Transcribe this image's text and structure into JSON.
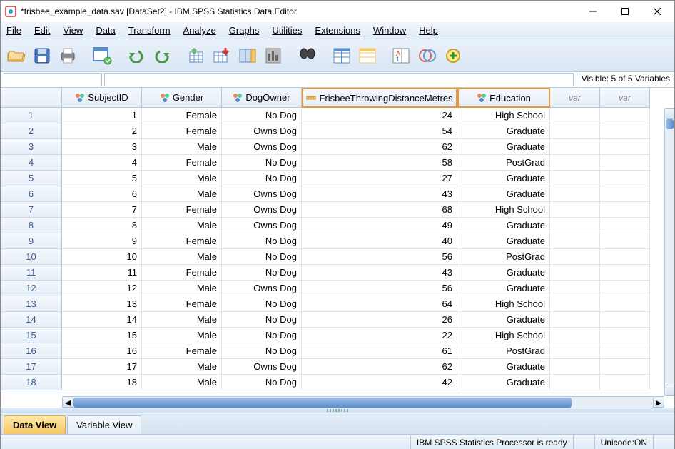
{
  "window": {
    "title": "*frisbee_example_data.sav [DataSet2] - IBM SPSS Statistics Data Editor"
  },
  "menu": [
    "File",
    "Edit",
    "View",
    "Data",
    "Transform",
    "Analyze",
    "Graphs",
    "Utilities",
    "Extensions",
    "Window",
    "Help"
  ],
  "visible_text": "Visible: 5 of 5 Variables",
  "columns": [
    {
      "name": "SubjectID",
      "type": "nominal",
      "selected": false
    },
    {
      "name": "Gender",
      "type": "nominal",
      "selected": false
    },
    {
      "name": "DogOwner",
      "type": "nominal",
      "selected": false
    },
    {
      "name": "FrisbeeThrowingDistanceMetres",
      "type": "scale",
      "selected": true
    },
    {
      "name": "Education",
      "type": "nominal",
      "selected": true
    }
  ],
  "empty_cols": [
    "var",
    "var"
  ],
  "rows": [
    {
      "n": 1,
      "SubjectID": "1",
      "Gender": "Female",
      "DogOwner": "No Dog",
      "Frisbee": "24",
      "Education": "High School"
    },
    {
      "n": 2,
      "SubjectID": "2",
      "Gender": "Female",
      "DogOwner": "Owns Dog",
      "Frisbee": "54",
      "Education": "Graduate"
    },
    {
      "n": 3,
      "SubjectID": "3",
      "Gender": "Male",
      "DogOwner": "Owns Dog",
      "Frisbee": "62",
      "Education": "Graduate"
    },
    {
      "n": 4,
      "SubjectID": "4",
      "Gender": "Female",
      "DogOwner": "No Dog",
      "Frisbee": "58",
      "Education": "PostGrad"
    },
    {
      "n": 5,
      "SubjectID": "5",
      "Gender": "Male",
      "DogOwner": "No Dog",
      "Frisbee": "27",
      "Education": "Graduate"
    },
    {
      "n": 6,
      "SubjectID": "6",
      "Gender": "Male",
      "DogOwner": "Owns Dog",
      "Frisbee": "43",
      "Education": "Graduate"
    },
    {
      "n": 7,
      "SubjectID": "7",
      "Gender": "Female",
      "DogOwner": "Owns Dog",
      "Frisbee": "68",
      "Education": "High School"
    },
    {
      "n": 8,
      "SubjectID": "8",
      "Gender": "Male",
      "DogOwner": "Owns Dog",
      "Frisbee": "49",
      "Education": "Graduate"
    },
    {
      "n": 9,
      "SubjectID": "9",
      "Gender": "Female",
      "DogOwner": "No Dog",
      "Frisbee": "40",
      "Education": "Graduate"
    },
    {
      "n": 10,
      "SubjectID": "10",
      "Gender": "Male",
      "DogOwner": "No Dog",
      "Frisbee": "56",
      "Education": "PostGrad"
    },
    {
      "n": 11,
      "SubjectID": "11",
      "Gender": "Female",
      "DogOwner": "No Dog",
      "Frisbee": "43",
      "Education": "Graduate"
    },
    {
      "n": 12,
      "SubjectID": "12",
      "Gender": "Male",
      "DogOwner": "Owns Dog",
      "Frisbee": "56",
      "Education": "Graduate"
    },
    {
      "n": 13,
      "SubjectID": "13",
      "Gender": "Female",
      "DogOwner": "No Dog",
      "Frisbee": "64",
      "Education": "High School"
    },
    {
      "n": 14,
      "SubjectID": "14",
      "Gender": "Male",
      "DogOwner": "No Dog",
      "Frisbee": "26",
      "Education": "Graduate"
    },
    {
      "n": 15,
      "SubjectID": "15",
      "Gender": "Male",
      "DogOwner": "No Dog",
      "Frisbee": "22",
      "Education": "High School"
    },
    {
      "n": 16,
      "SubjectID": "16",
      "Gender": "Female",
      "DogOwner": "No Dog",
      "Frisbee": "61",
      "Education": "PostGrad"
    },
    {
      "n": 17,
      "SubjectID": "17",
      "Gender": "Male",
      "DogOwner": "Owns Dog",
      "Frisbee": "62",
      "Education": "Graduate"
    },
    {
      "n": 18,
      "SubjectID": "18",
      "Gender": "Male",
      "DogOwner": "No Dog",
      "Frisbee": "42",
      "Education": "Graduate"
    }
  ],
  "tabs": {
    "active": "Data View",
    "inactive": "Variable View"
  },
  "status": {
    "processor": "IBM SPSS Statistics Processor is ready",
    "unicode": "Unicode:ON"
  },
  "colors": {
    "header_bg": "#e6eef8",
    "sel_border": "#e8963a",
    "row_border": "#dbe6f2"
  }
}
